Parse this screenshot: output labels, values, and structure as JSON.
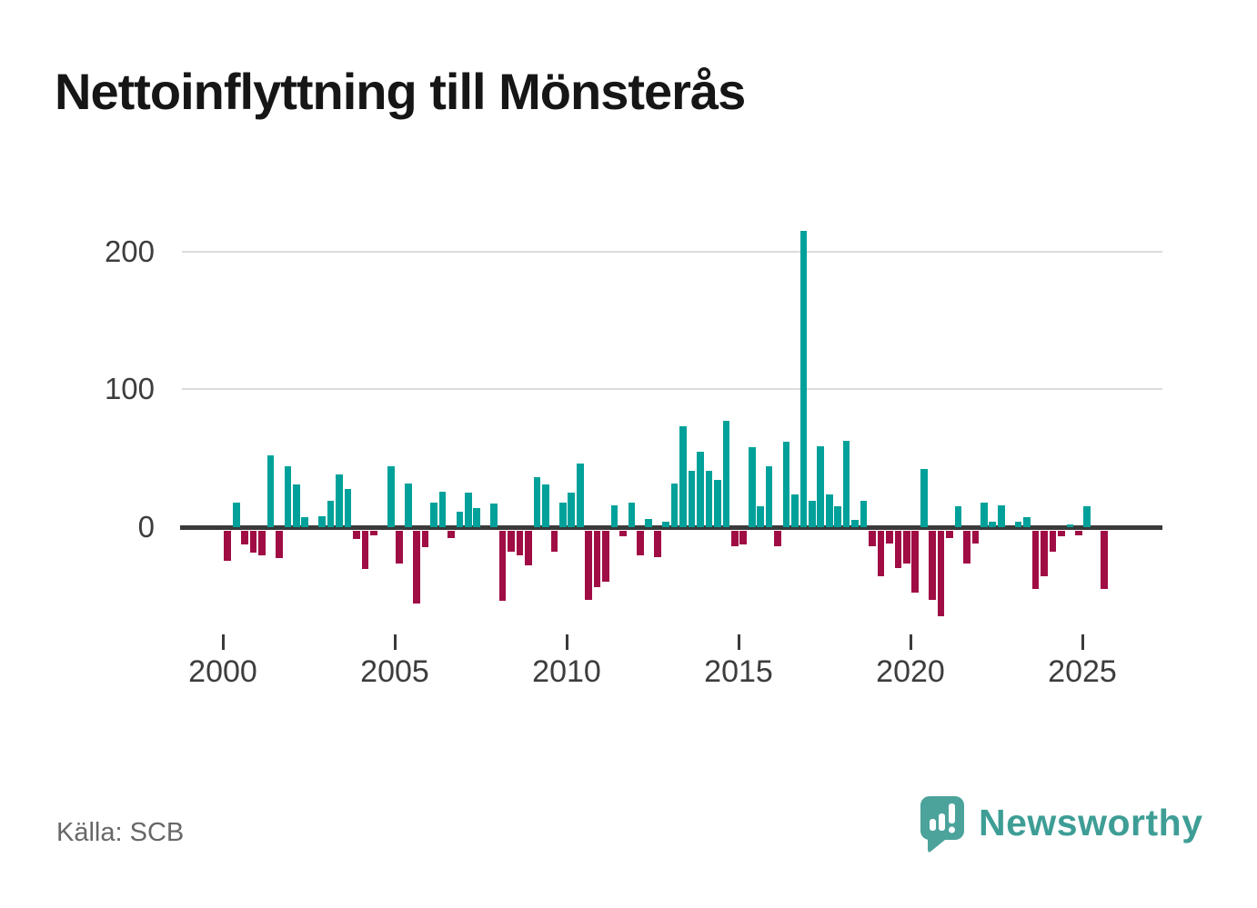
{
  "title": "Nettoinflyttning till Mönsterås",
  "source": "Källa: SCB",
  "branding": {
    "name": "Newsworthy",
    "icon": "newsworthy-speech-bubble-barchart-icon"
  },
  "chart_data": {
    "type": "bar",
    "title": "Nettoinflyttning till Mönsterås",
    "frequency": "quarterly",
    "start_period": "2000Q1",
    "end_period": "2025Q3",
    "x_ticks": [
      "2000",
      "2005",
      "2010",
      "2015",
      "2020",
      "2025"
    ],
    "y_ticks": [
      0,
      100,
      200
    ],
    "ylim": [
      -70,
      230
    ],
    "grid": "horizontal",
    "legend": "none",
    "colors": {
      "positive": "#00a19a",
      "negative": "#a00d45",
      "axis": "#3a3a3a",
      "gridline": "#dcdcdc"
    },
    "series": [
      {
        "name": "Nettoinflyttning",
        "by_year": [
          {
            "year": 2000,
            "values": [
              -22,
              18,
              -10,
              -16
            ]
          },
          {
            "year": 2001,
            "values": [
              -18,
              52,
              -20,
              44
            ]
          },
          {
            "year": 2002,
            "values": [
              31,
              7,
              0,
              8
            ]
          },
          {
            "year": 2003,
            "values": [
              19,
              38,
              28,
              -6
            ]
          },
          {
            "year": 2004,
            "values": [
              -28,
              -3,
              0,
              44
            ]
          },
          {
            "year": 2005,
            "values": [
              -24,
              32,
              -53,
              -12
            ]
          },
          {
            "year": 2006,
            "values": [
              18,
              26,
              -5,
              11
            ]
          },
          {
            "year": 2007,
            "values": [
              25,
              14,
              0,
              17
            ]
          },
          {
            "year": 2008,
            "values": [
              -51,
              -15,
              -18,
              -25
            ]
          },
          {
            "year": 2009,
            "values": [
              36,
              31,
              -15,
              18
            ]
          },
          {
            "year": 2010,
            "values": [
              25,
              46,
              -50,
              -41
            ]
          },
          {
            "year": 2011,
            "values": [
              -37,
              16,
              -4,
              18
            ]
          },
          {
            "year": 2012,
            "values": [
              -18,
              6,
              -19,
              4
            ]
          },
          {
            "year": 2013,
            "values": [
              32,
              73,
              41,
              55
            ]
          },
          {
            "year": 2014,
            "values": [
              41,
              34,
              77,
              -11
            ]
          },
          {
            "year": 2015,
            "values": [
              -10,
              58,
              15,
              44
            ]
          },
          {
            "year": 2016,
            "values": [
              -11,
              62,
              24,
              215
            ]
          },
          {
            "year": 2017,
            "values": [
              19,
              59,
              24,
              15
            ]
          },
          {
            "year": 2018,
            "values": [
              63,
              5,
              19,
              -11
            ]
          },
          {
            "year": 2019,
            "values": [
              -33,
              -9,
              -27,
              -24
            ]
          },
          {
            "year": 2020,
            "values": [
              -45,
              42,
              -50,
              -62
            ]
          },
          {
            "year": 2021,
            "values": [
              -5,
              15,
              -24,
              -9
            ]
          },
          {
            "year": 2022,
            "values": [
              18,
              4,
              16,
              0
            ]
          },
          {
            "year": 2023,
            "values": [
              4,
              7,
              -42,
              -33
            ]
          },
          {
            "year": 2024,
            "values": [
              -15,
              -4,
              2,
              -3
            ]
          },
          {
            "year": 2025,
            "values": [
              15,
              0,
              -42
            ]
          }
        ]
      }
    ]
  }
}
